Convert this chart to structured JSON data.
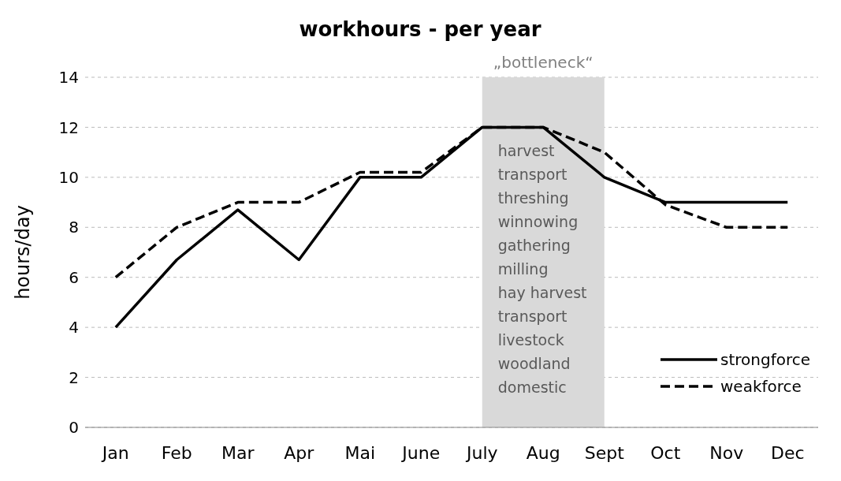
{
  "chart_data": {
    "type": "line",
    "title": "workhours - per year",
    "ylabel": "hours/day",
    "categories": [
      "Jan",
      "Feb",
      "Mar",
      "Apr",
      "Mai",
      "June",
      "July",
      "Aug",
      "Sept",
      "Oct",
      "Nov",
      "Dec"
    ],
    "series": [
      {
        "name": "strongforce",
        "color": "#000000",
        "line_style": "solid",
        "values": [
          4,
          6.7,
          8.7,
          6.7,
          10,
          10,
          12,
          12,
          10,
          9,
          9,
          9
        ]
      },
      {
        "name": "weakforce",
        "color": "#000000",
        "line_style": "dashed",
        "values": [
          6,
          8,
          9,
          9,
          10.2,
          10.2,
          12,
          12,
          11,
          8.9,
          8,
          8
        ]
      }
    ],
    "ylim": [
      0,
      14
    ],
    "yticks": [
      0,
      2,
      4,
      6,
      8,
      10,
      12,
      14
    ],
    "grid": "y",
    "legend": "bottom right",
    "marker": "none",
    "bands": [
      {
        "axis": "x",
        "from": "July",
        "to": "Sept",
        "label": "„bottleneck“",
        "color": "#d9d9d9"
      }
    ],
    "annotations": [
      "harvest",
      "transport",
      "threshing",
      "winnowing",
      "gathering",
      "milling",
      "hay harvest",
      "transport",
      "livestock",
      "woodland",
      "domestic"
    ]
  }
}
